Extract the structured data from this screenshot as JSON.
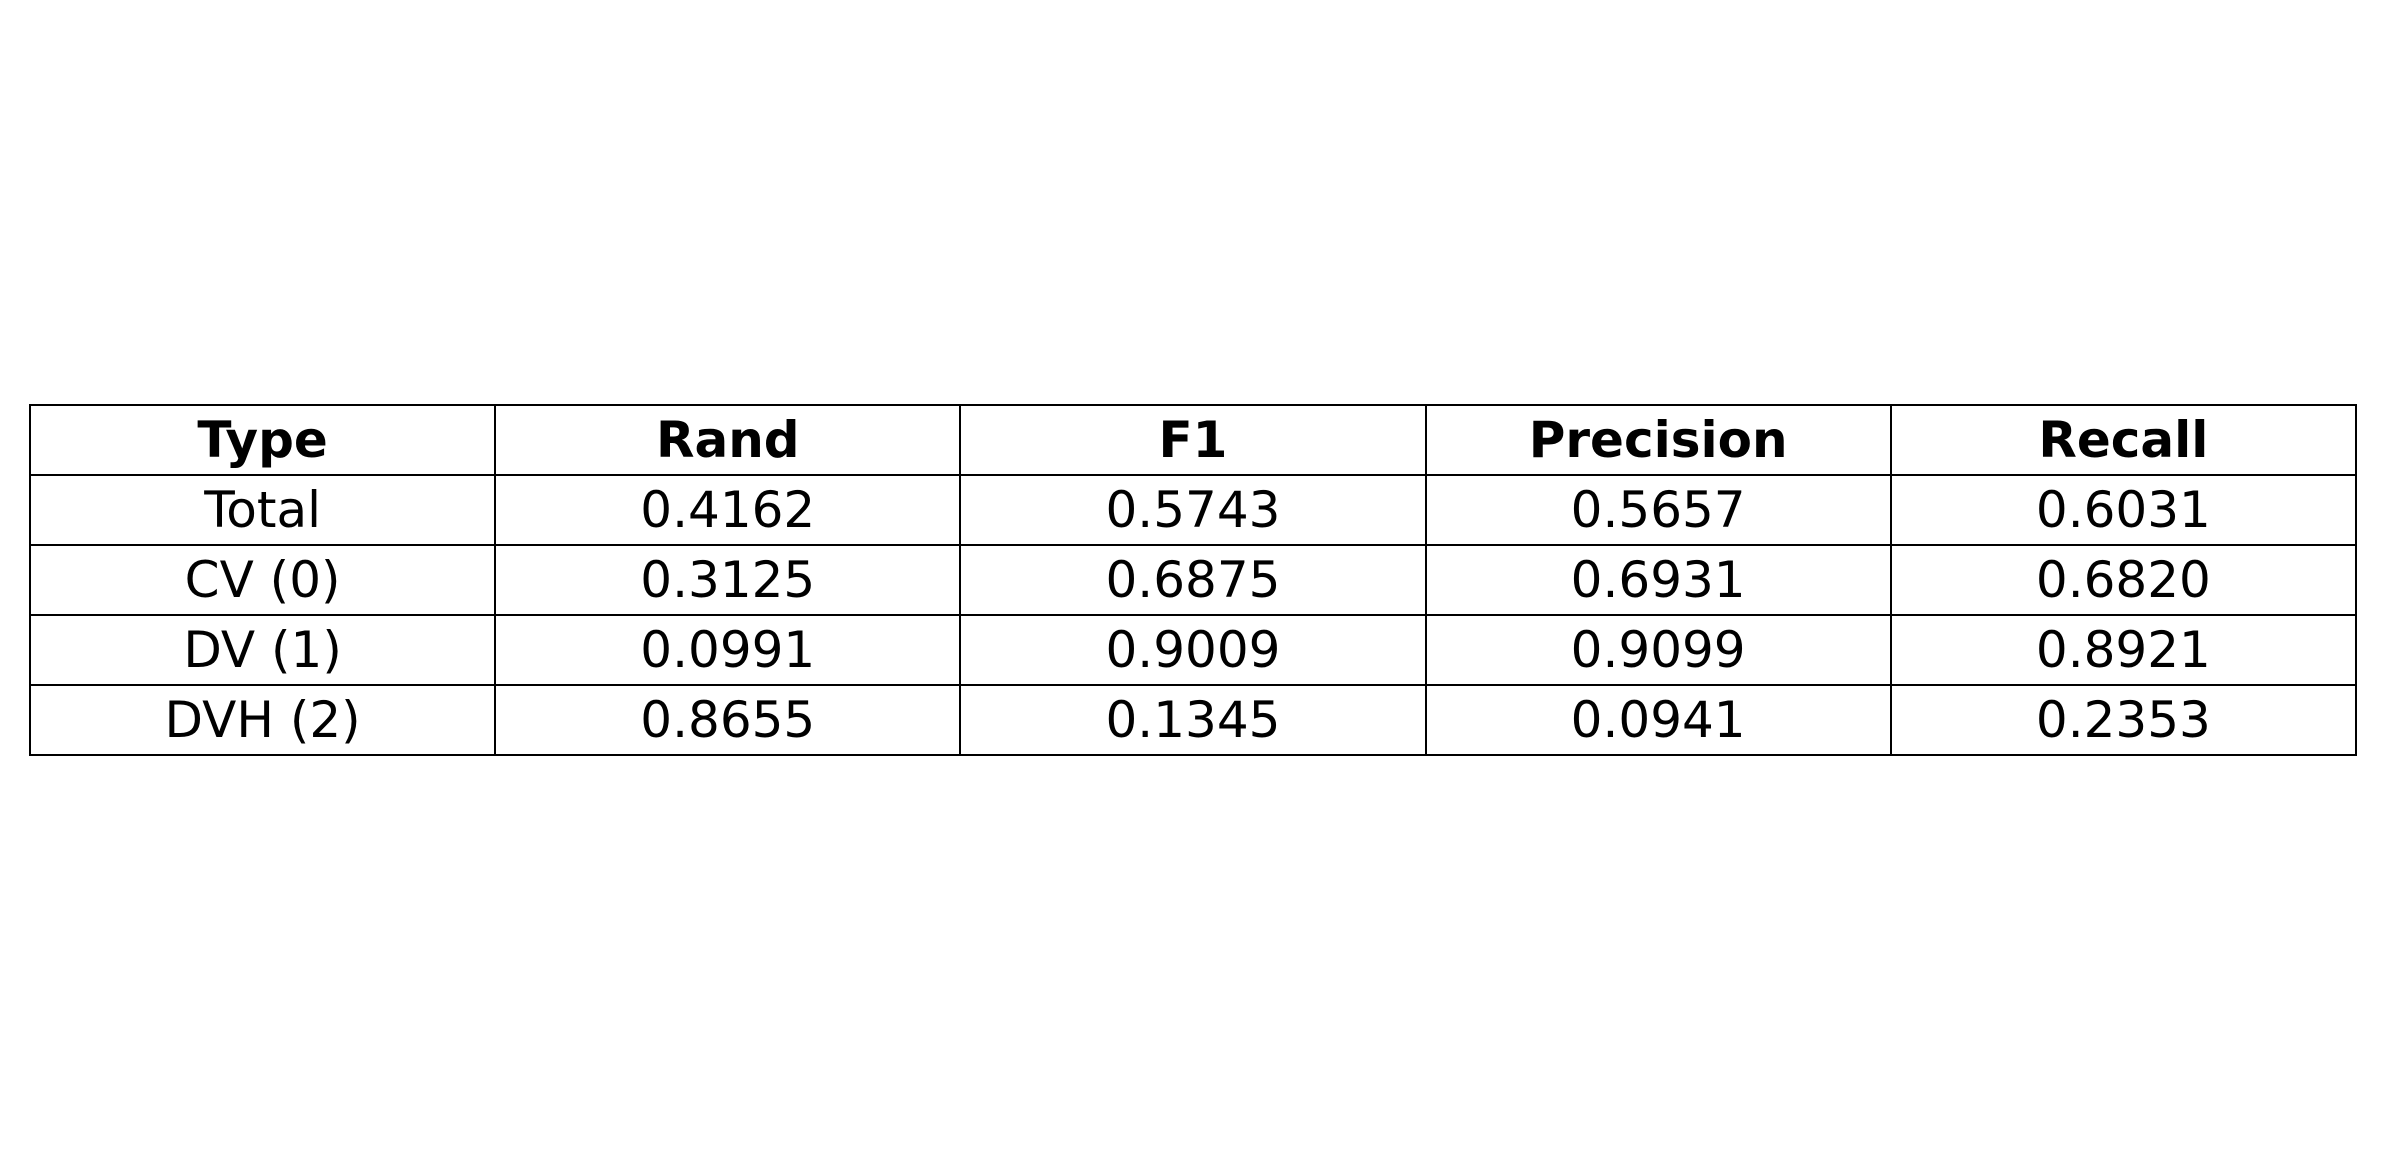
{
  "chart_data": {
    "type": "table",
    "columns": [
      "Type",
      "Rand",
      "F1",
      "Precision",
      "Recall"
    ],
    "rows": [
      [
        "Total",
        "0.4162",
        "0.5743",
        "0.5657",
        "0.6031"
      ],
      [
        "CV (0)",
        "0.3125",
        "0.6875",
        "0.6931",
        "0.6820"
      ],
      [
        "DV (1)",
        "0.0991",
        "0.9009",
        "0.9099",
        "0.8921"
      ],
      [
        "DVH (2)",
        "0.8655",
        "0.1345",
        "0.0941",
        "0.2353"
      ]
    ]
  }
}
